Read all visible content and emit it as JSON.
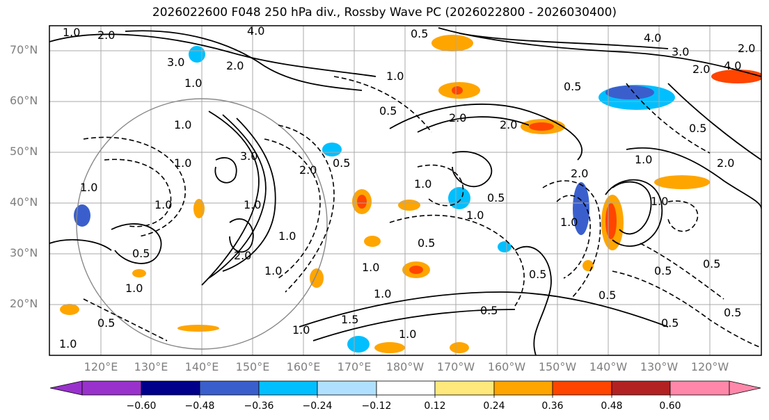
{
  "title": "2026022600 F048 250 hPa div., Rossby Wave PC (2026022800 - 2026030400)",
  "lat_labels": [
    "70°N",
    "60°N",
    "50°N",
    "40°N",
    "30°N",
    "20°N"
  ],
  "lon_labels": [
    "120°E",
    "130°E",
    "140°E",
    "150°E",
    "160°E",
    "170°E",
    "180°W",
    "170°W",
    "160°W",
    "150°W",
    "140°W",
    "130°W",
    "120°W"
  ],
  "contour_labels": [
    "1.0",
    "2.0",
    "4.0",
    "0.5",
    "1.0",
    "2.0",
    "0.5",
    "3.0",
    "1.0",
    "2.0",
    "0.5",
    "1.0",
    "1.0",
    "1.0",
    "2.0",
    "0.5",
    "4.0",
    "2.0",
    "3.0",
    "1.0",
    "1.0",
    "0.5",
    "1.0",
    "2.0",
    "1.0",
    "0.5",
    "1.0",
    "0.5",
    "1.5",
    "1.0",
    "1.0",
    "1.0",
    "0.5",
    "0.5",
    "1.0",
    "2.0",
    "0.5",
    "2.0",
    "1.0",
    "0.5",
    "1.0",
    "0.5",
    "1.0",
    "0.5",
    "2.0",
    "1.0",
    "0.5",
    "4.0",
    "3.0",
    "0.5",
    "2.0",
    "1.0",
    "0.5",
    "1.0"
  ],
  "colorbar": {
    "ticks": [
      "−0.60",
      "−0.48",
      "−0.36",
      "−0.24",
      "−0.12",
      "0.12",
      "0.24",
      "0.36",
      "0.48",
      "0.60"
    ],
    "colors": [
      "#9932cc",
      "#00008b",
      "#3a5fcd",
      "#00bfff",
      "#b0e0ff",
      "#ffffff",
      "#ffe87c",
      "#ffa500",
      "#ff4500",
      "#b22222",
      "#ff88aa"
    ]
  }
}
